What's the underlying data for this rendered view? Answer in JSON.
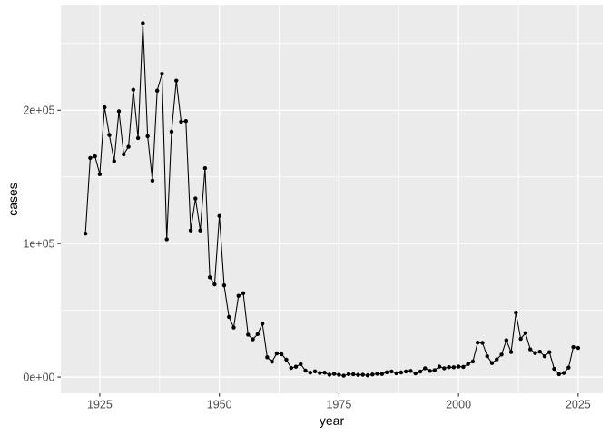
{
  "chart_data": {
    "type": "line",
    "xlabel": "year",
    "ylabel": "cases",
    "x": [
      1922,
      1923,
      1924,
      1925,
      1926,
      1927,
      1928,
      1929,
      1930,
      1931,
      1932,
      1933,
      1934,
      1935,
      1936,
      1937,
      1938,
      1939,
      1940,
      1941,
      1942,
      1943,
      1944,
      1945,
      1946,
      1947,
      1948,
      1949,
      1950,
      1951,
      1952,
      1953,
      1954,
      1955,
      1956,
      1957,
      1958,
      1959,
      1960,
      1961,
      1962,
      1963,
      1964,
      1965,
      1966,
      1967,
      1968,
      1969,
      1970,
      1971,
      1972,
      1973,
      1974,
      1975,
      1976,
      1977,
      1978,
      1979,
      1980,
      1981,
      1982,
      1983,
      1984,
      1985,
      1986,
      1987,
      1988,
      1989,
      1990,
      1991,
      1992,
      1993,
      1994,
      1995,
      1996,
      1997,
      1998,
      1999,
      2000,
      2001,
      2002,
      2003,
      2004,
      2005,
      2006,
      2007,
      2008,
      2009,
      2010,
      2011,
      2012,
      2013,
      2014,
      2015,
      2016,
      2017,
      2018,
      2019,
      2020,
      2021,
      2022,
      2023,
      2024,
      2025
    ],
    "values": [
      107473,
      164191,
      165418,
      152003,
      202210,
      181411,
      161799,
      199249,
      166914,
      172559,
      215343,
      179135,
      265269,
      180518,
      147237,
      214652,
      227319,
      103188,
      183866,
      222202,
      191383,
      191890,
      109873,
      133792,
      109860,
      156517,
      74715,
      69479,
      120718,
      68687,
      45030,
      37129,
      60886,
      62786,
      31732,
      28295,
      32148,
      40005,
      14809,
      11468,
      17749,
      17135,
      13005,
      6799,
      7717,
      9718,
      4810,
      3285,
      4249,
      3036,
      3287,
      1759,
      2402,
      1738,
      1010,
      2177,
      2063,
      1623,
      1730,
      1248,
      1895,
      2463,
      2276,
      3589,
      4195,
      2823,
      3450,
      4157,
      4570,
      2719,
      4083,
      6586,
      4617,
      5137,
      7796,
      6564,
      7405,
      7298,
      7867,
      7580,
      9771,
      11647,
      25827,
      25616,
      15632,
      10454,
      13278,
      16858,
      27550,
      18719,
      48277,
      28639,
      32971,
      20762,
      17972,
      18975,
      15609,
      18617,
      6124,
      2116,
      3044,
      7063,
      22500,
      21800
    ],
    "xlim": [
      1916.85,
      2030.15
    ],
    "ylim": [
      -12200,
      278480
    ],
    "x_ticks": {
      "major": [
        1925,
        1950,
        1975,
        2000,
        2025
      ],
      "labels": [
        "1925",
        "1950",
        "1975",
        "2000",
        "2025"
      ],
      "minor": [
        1937.5,
        1962.5,
        1987.5,
        2012.5
      ]
    },
    "y_ticks": {
      "major": [
        0,
        100000,
        200000
      ],
      "labels": [
        "0e+00",
        "1e+05",
        "2e+05"
      ],
      "minor": [
        50000,
        150000,
        250000
      ]
    },
    "grid": {
      "major": true,
      "minor": true
    },
    "legend_position": "none",
    "marker": "point",
    "style": {
      "panel_bg": "#ebebeb",
      "grid_color": "#ffffff",
      "line_color": "#000000",
      "point_color": "#000000",
      "tick_mark_color": "#333333",
      "tick_label_color": "#4d4d4d",
      "axis_title_color": "#000000",
      "outer_bg": "#ffffff"
    }
  }
}
